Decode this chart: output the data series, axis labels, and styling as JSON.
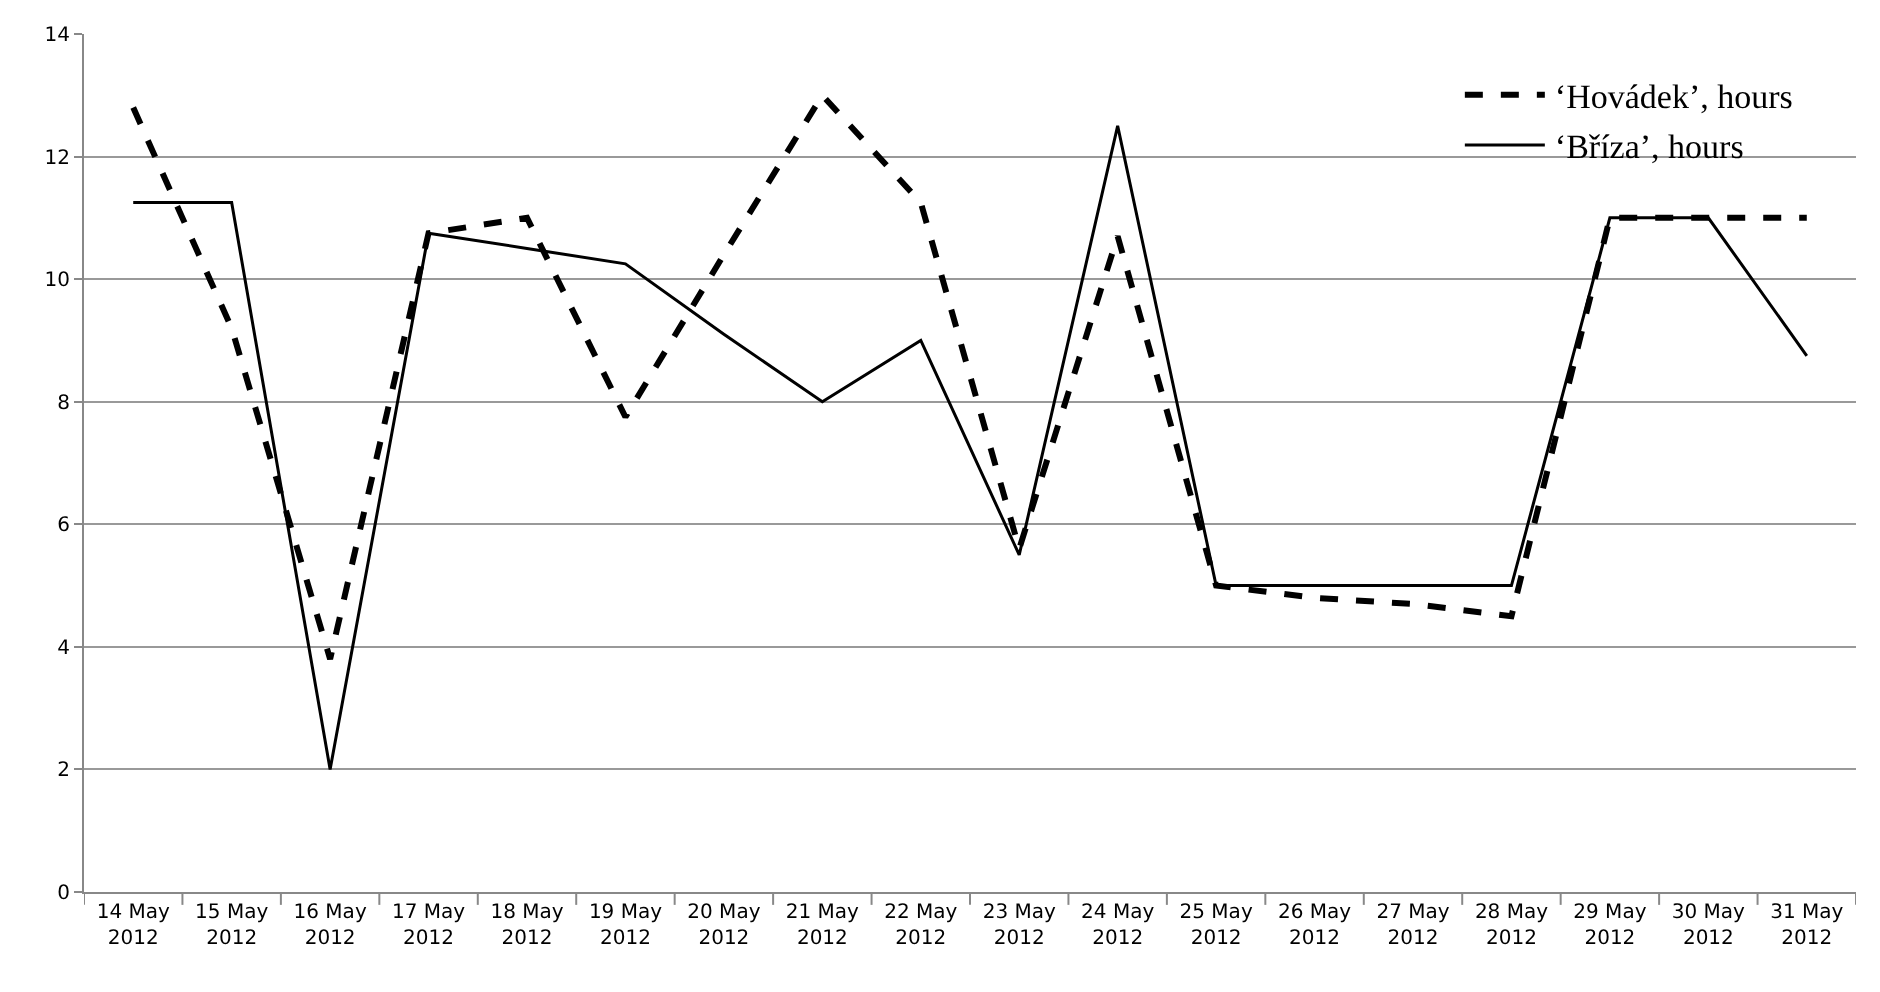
{
  "chart_data": {
    "type": "line",
    "categories": [
      "14 May 2012",
      "15 May 2012",
      "16 May 2012",
      "17 May 2012",
      "18 May 2012",
      "19 May 2012",
      "20 May 2012",
      "21 May 2012",
      "22 May 2012",
      "23 May 2012",
      "24 May 2012",
      "25 May 2012",
      "26 May 2012",
      "27 May 2012",
      "28 May 2012",
      "29 May 2012",
      "30 May 2012",
      "31 May 2012"
    ],
    "series": [
      {
        "name": "‘Hovádek’, hours",
        "color": "#000000",
        "line_style": "dashed",
        "values": [
          12.8,
          9.2,
          3.8,
          10.75,
          11,
          7.75,
          10.4,
          13,
          11.25,
          5.6,
          10.7,
          5,
          4.8,
          4.7,
          4.5,
          11,
          11,
          11
        ]
      },
      {
        "name": "‘Bříza’, hours",
        "color": "#000000",
        "line_style": "solid",
        "values": [
          11.25,
          11.25,
          2,
          10.75,
          10.5,
          10.25,
          9.1,
          8,
          9,
          5.5,
          12.5,
          5,
          5,
          5,
          5,
          11,
          11,
          8.75
        ]
      }
    ],
    "ylim": [
      0,
      14
    ],
    "yticks": [
      0,
      2,
      4,
      6,
      8,
      10,
      12,
      14
    ],
    "grid": "y",
    "legend": "top right",
    "marker": "none"
  }
}
